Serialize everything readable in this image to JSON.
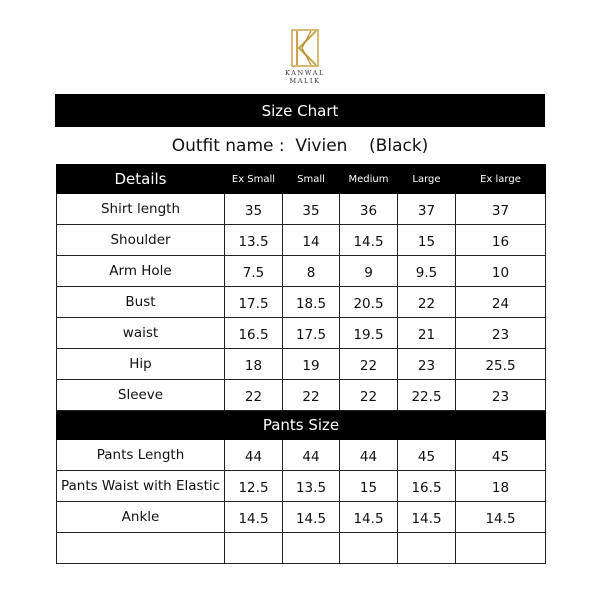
{
  "brand": {
    "name": "KANWAL MALIK",
    "logo_letter": "K",
    "logo_color": "#c9a449"
  },
  "title": "Size Chart",
  "outfit": "Outfit name :  Vivien    (Black)",
  "columns": [
    "Details",
    "Ex Small",
    "Small",
    "Medium",
    "Large",
    "Ex large"
  ],
  "shirt_rows": [
    {
      "label": "Shirt length",
      "values": [
        "35",
        "35",
        "36",
        "37",
        "37"
      ]
    },
    {
      "label": "Shoulder",
      "values": [
        "13.5",
        "14",
        "14.5",
        "15",
        "16"
      ]
    },
    {
      "label": "Arm Hole",
      "values": [
        "7.5",
        "8",
        "9",
        "9.5",
        "10"
      ]
    },
    {
      "label": "Bust",
      "values": [
        "17.5",
        "18.5",
        "20.5",
        "22",
        "24"
      ]
    },
    {
      "label": "waist",
      "values": [
        "16.5",
        "17.5",
        "19.5",
        "21",
        "23"
      ]
    },
    {
      "label": "Hip",
      "values": [
        "18",
        "19",
        "22",
        "23",
        "25.5"
      ]
    },
    {
      "label": "Sleeve",
      "values": [
        "22",
        "22",
        "22",
        "22.5",
        "23"
      ]
    }
  ],
  "pants_section": "Pants Size",
  "pants_rows": [
    {
      "label": "Pants Length",
      "values": [
        "44",
        "44",
        "44",
        "45",
        "45"
      ]
    },
    {
      "label": "Pants Waist with Elastic",
      "values": [
        "12.5",
        "13.5",
        "15",
        "16.5",
        "18"
      ]
    },
    {
      "label": "Ankle",
      "values": [
        "14.5",
        "14.5",
        "14.5",
        "14.5",
        "14.5"
      ]
    },
    {
      "label": "",
      "values": [
        "",
        "",
        "",
        "",
        ""
      ]
    }
  ]
}
